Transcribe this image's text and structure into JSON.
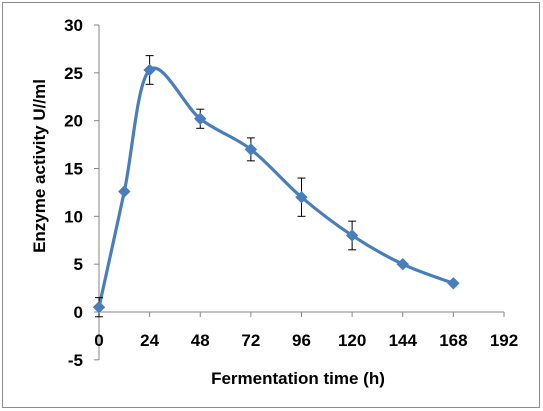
{
  "chart_data": {
    "type": "line",
    "title": "",
    "xlabel": "Fermentation time (h)",
    "ylabel": "Enzyme activity U//ml",
    "xlim": [
      0,
      192
    ],
    "ylim": [
      -5,
      30
    ],
    "xticks": [
      0,
      24,
      48,
      72,
      96,
      120,
      144,
      168,
      192
    ],
    "yticks": [
      -5,
      0,
      5,
      10,
      15,
      20,
      25,
      30
    ],
    "grid": false,
    "legend": "none",
    "smooth": true,
    "series": [
      {
        "color": "#4a7ebb",
        "marker": "diamond",
        "points": [
          {
            "x": 0,
            "y": 0.5,
            "err": 1.0
          },
          {
            "x": 12,
            "y": 12.6,
            "err": 0
          },
          {
            "x": 24,
            "y": 25.3,
            "err": 1.5
          },
          {
            "x": 48,
            "y": 20.2,
            "err": 1.0
          },
          {
            "x": 72,
            "y": 17.0,
            "err": 1.2
          },
          {
            "x": 96,
            "y": 12.0,
            "err": 2.0
          },
          {
            "x": 120,
            "y": 8.0,
            "err": 1.5
          },
          {
            "x": 144,
            "y": 5.0,
            "err": 0
          },
          {
            "x": 168,
            "y": 3.0,
            "err": 0
          }
        ]
      }
    ]
  }
}
